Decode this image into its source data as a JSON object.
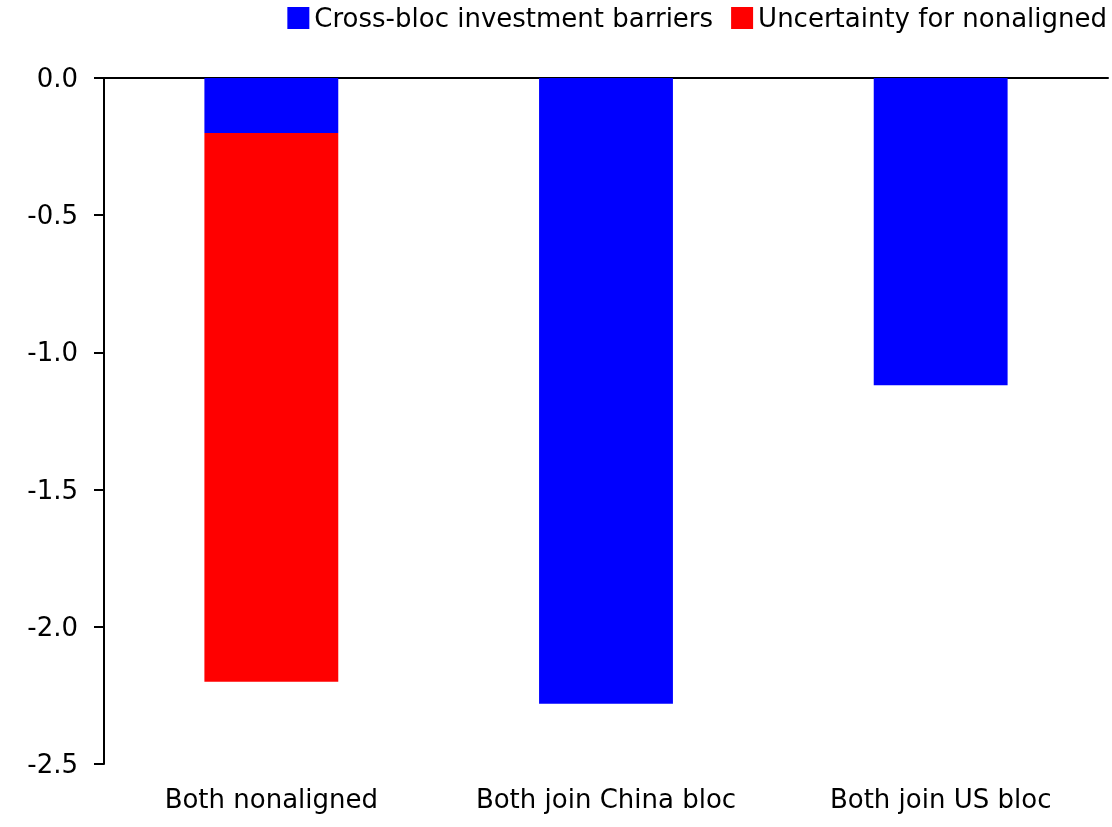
{
  "chart_data": {
    "type": "bar",
    "stacked": true,
    "categories": [
      "Both nonaligned",
      "Both join China bloc",
      "Both join US bloc"
    ],
    "series": [
      {
        "name": "Cross-bloc investment barriers",
        "color": "#0000ff",
        "values": [
          -0.2,
          -2.28,
          -1.12
        ]
      },
      {
        "name": "Uncertainty for nonaligned",
        "color": "#ff0000",
        "values": [
          -2.0,
          null,
          null
        ]
      }
    ],
    "ylim": [
      -2.5,
      0
    ],
    "yticks": [
      {
        "value": -2.5,
        "label": "-2.5"
      },
      {
        "value": -2,
        "label": "-2.0"
      },
      {
        "value": -1.5,
        "label": "-1.5"
      },
      {
        "value": -1,
        "label": "-1.0"
      },
      {
        "value": -0.5,
        "label": "-0.5"
      },
      {
        "value": 0,
        "label": "0.0"
      }
    ],
    "grid": false,
    "legend": "top right"
  }
}
